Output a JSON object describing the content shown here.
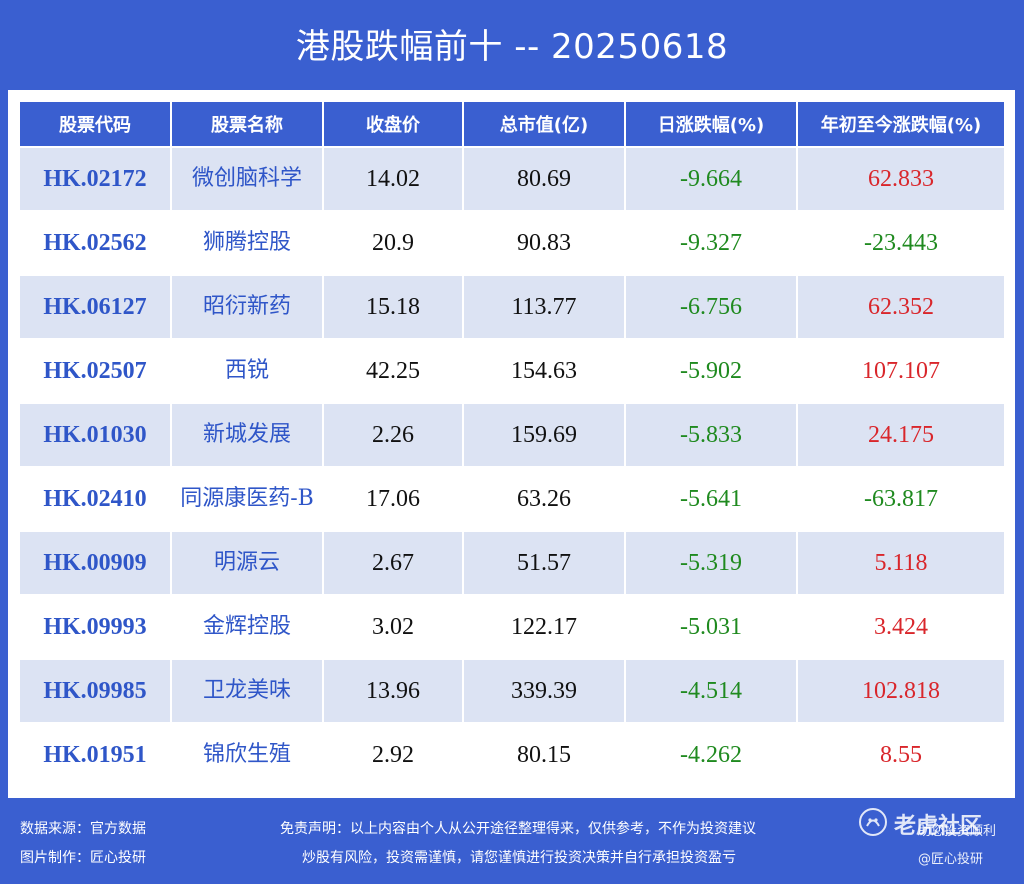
{
  "title": "港股跌幅前十 -- 20250618",
  "table": {
    "headers": [
      "股票代码",
      "股票名称",
      "收盘价",
      "总市值(亿)",
      "日涨跌幅(%)",
      "年初至今涨跌幅(%)"
    ],
    "rows": [
      {
        "code": "HK.02172",
        "name": "微创脑科学",
        "close": "14.02",
        "mcap": "80.69",
        "day": "-9.664",
        "ytd": "62.833"
      },
      {
        "code": "HK.02562",
        "name": "狮腾控股",
        "close": "20.9",
        "mcap": "90.83",
        "day": "-9.327",
        "ytd": "-23.443"
      },
      {
        "code": "HK.06127",
        "name": "昭衍新药",
        "close": "15.18",
        "mcap": "113.77",
        "day": "-6.756",
        "ytd": "62.352"
      },
      {
        "code": "HK.02507",
        "name": "西锐",
        "close": "42.25",
        "mcap": "154.63",
        "day": "-5.902",
        "ytd": "107.107"
      },
      {
        "code": "HK.01030",
        "name": "新城发展",
        "close": "2.26",
        "mcap": "159.69",
        "day": "-5.833",
        "ytd": "24.175"
      },
      {
        "code": "HK.02410",
        "name": "同源康医药-B",
        "close": "17.06",
        "mcap": "63.26",
        "day": "-5.641",
        "ytd": "-63.817"
      },
      {
        "code": "HK.00909",
        "name": "明源云",
        "close": "2.67",
        "mcap": "51.57",
        "day": "-5.319",
        "ytd": "5.118"
      },
      {
        "code": "HK.09993",
        "name": "金辉控股",
        "close": "3.02",
        "mcap": "122.17",
        "day": "-5.031",
        "ytd": "3.424"
      },
      {
        "code": "HK.09985",
        "name": "卫龙美味",
        "close": "13.96",
        "mcap": "339.39",
        "day": "-4.514",
        "ytd": "102.818"
      },
      {
        "code": "HK.01951",
        "name": "锦欣生殖",
        "close": "2.92",
        "mcap": "80.15",
        "day": "-4.262",
        "ytd": "8.55"
      }
    ]
  },
  "footer": {
    "source": "数据来源：官方数据",
    "made_by": "图片制作：匠心投研",
    "disclaimer_line1": "免责声明：以上内容由个人从公开途径整理得来，仅供参考，不作为投资建议",
    "disclaimer_line2": "炒股有风险，投资需谨慎，请您谨慎进行投资决策并自行承担投资盈亏",
    "right_line1": "助您投资顺利",
    "right_line2": "@匠心投研",
    "watermark": "老虎社区"
  },
  "colors": {
    "background": "#3a5fd0",
    "header_bg": "#3a5fd0",
    "row_odd": "#dce3f3",
    "row_even": "#ffffff",
    "code_text": "#2f56c8",
    "negative": "#1f8a1f",
    "positive": "#d9262b"
  }
}
